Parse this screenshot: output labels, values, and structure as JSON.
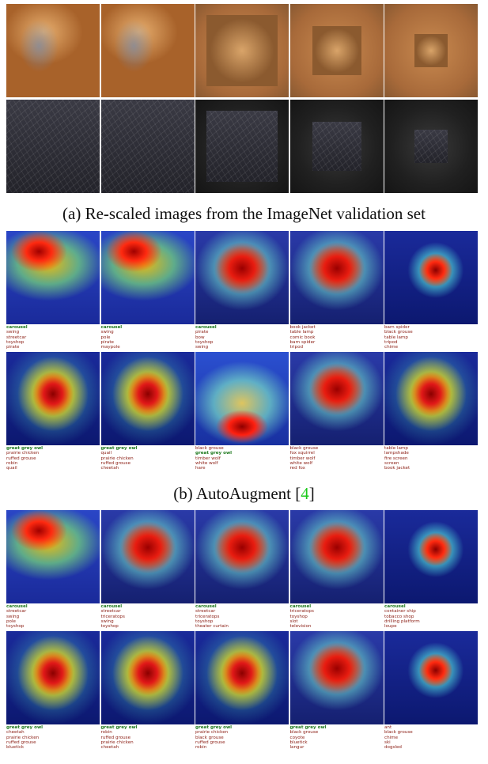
{
  "captions": {
    "a": "(a) Re-scaled images from the ImageNet validation set",
    "b_text": "(b) AutoAugment [",
    "b_ref": "4",
    "b_close": "]"
  },
  "colors": {
    "top1_label": "#1f7a1f",
    "other_label": "#8a1c12",
    "citation": "#19c919"
  },
  "rows": {
    "b_carousel": [
      [
        "carousel",
        "swing",
        "streetcar",
        "toyshop",
        "pirate"
      ],
      [
        "carousel",
        "swing",
        "pole",
        "pirate",
        "maypole"
      ],
      [
        "carousel",
        "pirate",
        "bow",
        "toyshop",
        "swing"
      ],
      [
        "book jacket",
        "table lamp",
        "comic book",
        "barn spider",
        "tripod"
      ],
      [
        "barn spider",
        "black grouse",
        "table lamp",
        "tripod",
        "chime"
      ]
    ],
    "b_owl": [
      [
        "great grey owl",
        "prairie chicken",
        "ruffed grouse",
        "robin",
        "quail"
      ],
      [
        "great grey owl",
        "quail",
        "prairie chicken",
        "ruffed grouse",
        "cheetah"
      ],
      [
        "black grouse",
        "great grey owl",
        "timber wolf",
        "white wolf",
        "hare"
      ],
      [
        "black grouse",
        "fox squirrel",
        "timber wolf",
        "white wolf",
        "red fox"
      ],
      [
        "table lamp",
        "lampshade",
        "fire screen",
        "screen",
        "book jacket"
      ]
    ],
    "c_carousel": [
      [
        "carousel",
        "streetcar",
        "swing",
        "pole",
        "toyshop"
      ],
      [
        "carousel",
        "streetcar",
        "triceratops",
        "swing",
        "toyshop"
      ],
      [
        "carousel",
        "streetcar",
        "triceratops",
        "toyshop",
        "theater curtain"
      ],
      [
        "carousel",
        "triceratops",
        "toyshop",
        "slot",
        "television"
      ],
      [
        "carousel",
        "container ship",
        "tobacco shop",
        "drilling platform",
        "loupe"
      ]
    ],
    "c_owl": [
      [
        "great grey owl",
        "cheetah",
        "prairie chicken",
        "ruffed grouse",
        "bluetick"
      ],
      [
        "great grey owl",
        "robin",
        "ruffed grouse",
        "prairie chicken",
        "cheetah"
      ],
      [
        "great grey owl",
        "prairie chicken",
        "black grouse",
        "ruffed grouse",
        "robin"
      ],
      [
        "great grey owl",
        "black grouse",
        "coyote",
        "bluetick",
        "langur"
      ],
      [
        "ant",
        "black grouse",
        "chime",
        "ski",
        "dogsled"
      ]
    ]
  },
  "top1_correct": {
    "b_carousel": [
      true,
      true,
      true,
      false,
      false
    ],
    "b_owl": [
      true,
      true,
      false,
      false,
      false
    ],
    "c_carousel": [
      true,
      true,
      true,
      true,
      true
    ],
    "c_owl": [
      true,
      true,
      true,
      true,
      false
    ]
  },
  "b_owl_green_second": [
    false,
    false,
    true,
    false,
    false
  ]
}
